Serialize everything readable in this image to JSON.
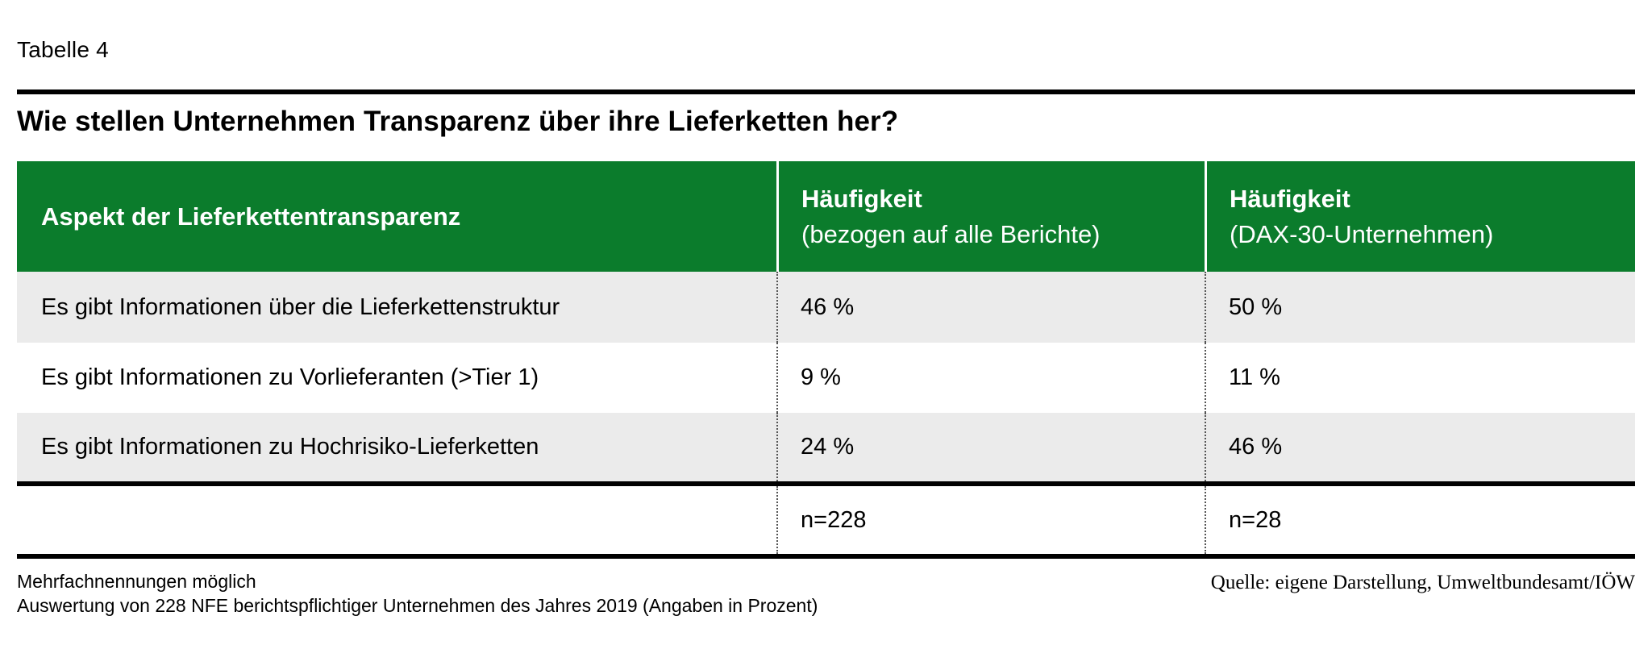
{
  "page": {
    "table_label": "Tabelle 4",
    "title": "Wie stellen Unternehmen Transparenz über ihre Lieferketten her?"
  },
  "table": {
    "header": {
      "col1": "Aspekt der Lieferkettentransparenz",
      "col2_title": "Häufigkeit",
      "col2_sub": "(bezogen auf alle Berichte)",
      "col3_title": "Häufigkeit",
      "col3_sub": "(DAX-30-Unternehmen)"
    },
    "rows": [
      {
        "aspect": "Es gibt Informationen über die Lieferkettenstruktur",
        "all_reports": "46 %",
        "dax30": "50 %"
      },
      {
        "aspect": "Es gibt Informationen zu Vorlieferanten (>Tier 1)",
        "all_reports": "9 %",
        "dax30": "11 %"
      },
      {
        "aspect": "Es gibt Informationen zu Hochrisiko-Lieferketten",
        "all_reports": "24 %",
        "dax30": "46 %"
      }
    ],
    "totals": {
      "all_reports": "n=228",
      "dax30": "n=28"
    }
  },
  "footer": {
    "note_line1": "Mehrfachnennungen möglich",
    "note_line2": "Auswertung von 228 NFE berichtspflichtiger Unternehmen des Jahres 2019 (Angaben in Prozent)",
    "source": "Quelle: eigene Darstellung, Umweltbundesamt/IÖW"
  },
  "colors": {
    "header_green": "#0B7C2C",
    "row_alt_gray": "#EBEBEB",
    "rule_black": "#000000",
    "header_text": "#FFFFFF"
  }
}
